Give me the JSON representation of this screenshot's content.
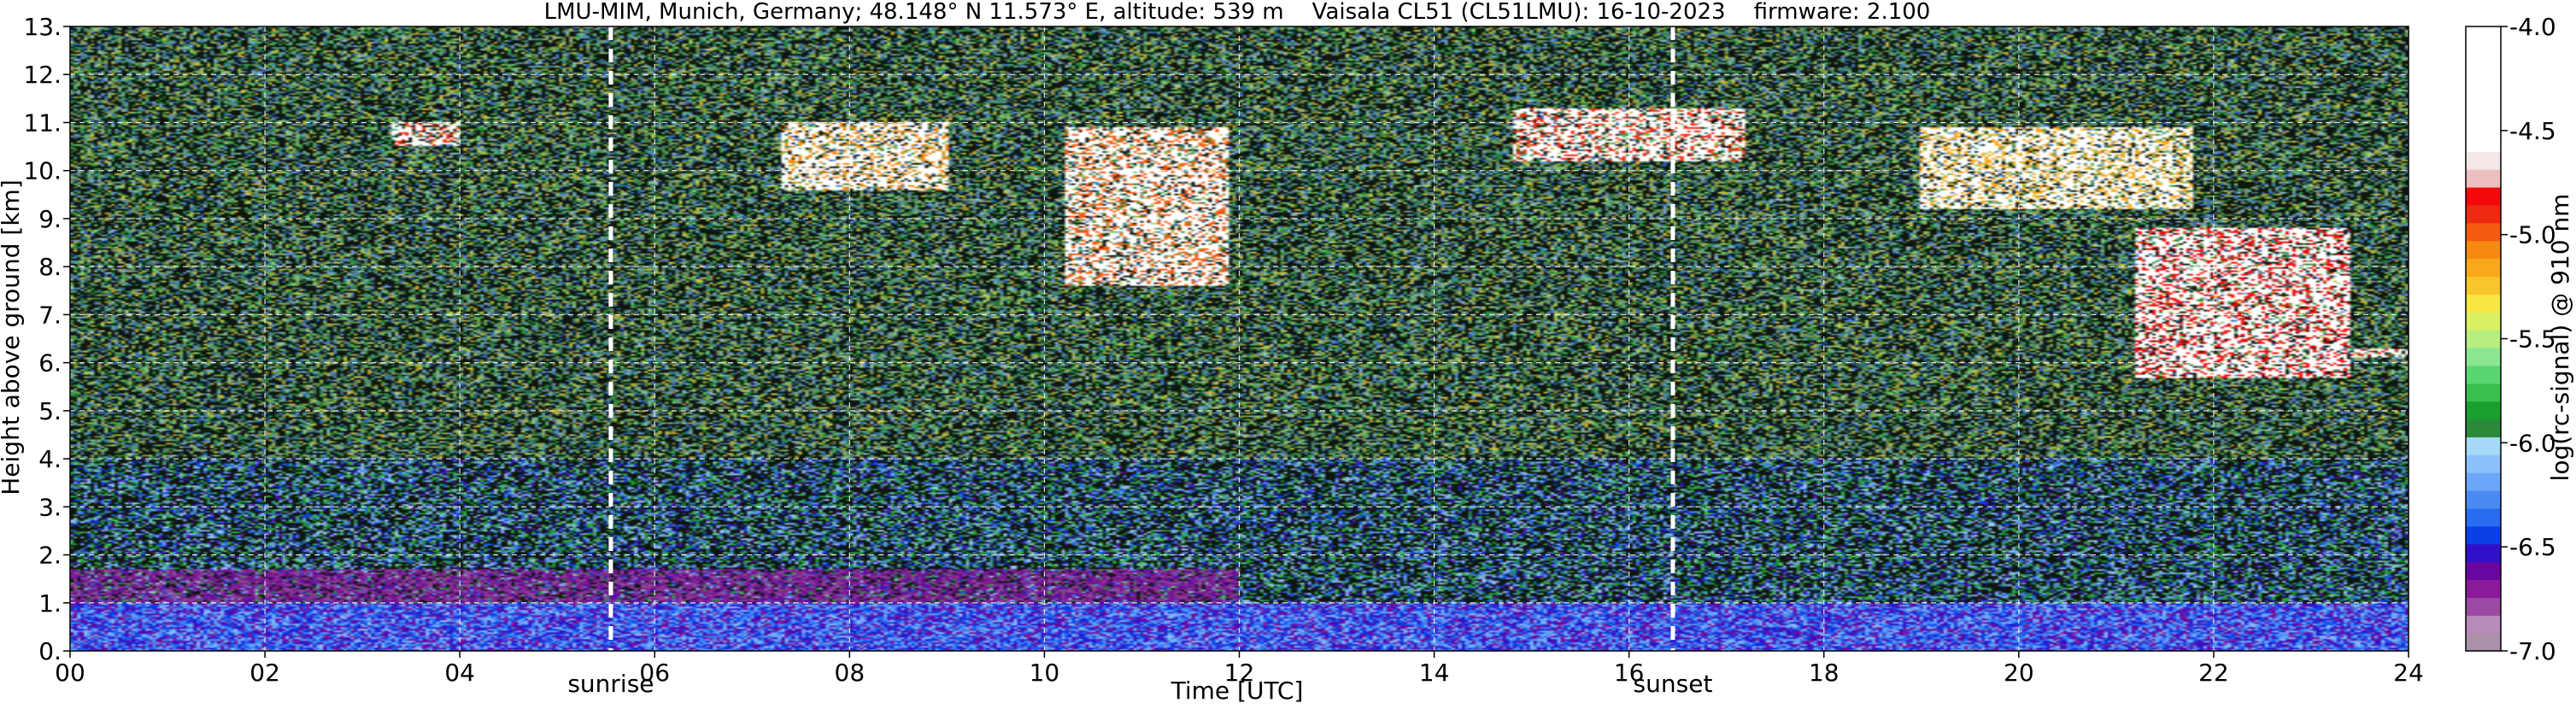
{
  "chart_data": {
    "type": "heatmap",
    "title": "LMU-MIM, Munich, Germany; 48.148° N 11.573° E, altitude: 539 m    Vaisala CL51 (CL51LMU): 16-10-2023    firmware: 2.100",
    "xlabel": "Time [UTC]",
    "ylabel": "Height above ground [km]",
    "xlim": [
      0,
      24
    ],
    "ylim": [
      0,
      13
    ],
    "x_ticks": [
      0,
      2,
      4,
      6,
      8,
      10,
      12,
      14,
      16,
      18,
      20,
      22,
      24
    ],
    "x_tick_labels": [
      "00",
      "02",
      "04",
      "06",
      "08",
      "10",
      "12",
      "14",
      "16",
      "18",
      "20",
      "22",
      "24"
    ],
    "y_ticks": [
      0,
      1,
      2,
      3,
      4,
      5,
      6,
      7,
      8,
      9,
      10,
      11,
      12,
      13
    ],
    "y_tick_labels": [
      "0.",
      "1.",
      "2.",
      "3.",
      "4.",
      "5.",
      "6.",
      "7.",
      "8.",
      "9.",
      "10.",
      "11.",
      "12.",
      "13."
    ],
    "grid": true,
    "markers": [
      {
        "x": 5.55,
        "label": "sunrise"
      },
      {
        "x": 16.45,
        "label": "sunset"
      }
    ],
    "colorbar": {
      "label": "log(rc-signal) @ 910 nm",
      "range": [
        -7.0,
        -4.0
      ],
      "ticks": [
        -7.0,
        -6.5,
        -6.0,
        -5.5,
        -5.0,
        -4.5,
        -4.0
      ],
      "tick_labels": [
        "-7.0",
        "-6.5",
        "-6.0",
        "-5.5",
        "-5.0",
        "-4.5",
        "-4.0"
      ],
      "colors": [
        "#aa90a8",
        "#b88ab8",
        "#9a4aa2",
        "#8a1a9a",
        "#6a06a0",
        "#3010c8",
        "#0a40e8",
        "#2a6cf0",
        "#4a8af2",
        "#6ca6f8",
        "#8cc0fa",
        "#a6d8f8",
        "#2a8a3a",
        "#1aa030",
        "#38c050",
        "#5ad670",
        "#8ae690",
        "#b6ee80",
        "#dcf064",
        "#fae640",
        "#f8c62a",
        "#f8a81a",
        "#f68a10",
        "#f45a10",
        "#ee2a10",
        "#f20a0a",
        "#ecc0c0",
        "#f4e8e8",
        "#ffffff",
        "#ffffff",
        "#ffffff",
        "#ffffff",
        "#ffffff",
        "#ffffff",
        "#ffffff"
      ]
    },
    "features": [
      {
        "type": "boundary_layer",
        "x_range": [
          0,
          24
        ],
        "height_km": [
          0,
          1.0
        ],
        "level": -6.4
      },
      {
        "type": "residual_layer",
        "x_range": [
          0,
          12
        ],
        "height_km": [
          1.0,
          1.7
        ],
        "level": -6.7
      },
      {
        "type": "cirrus",
        "x_range": [
          3.3,
          4.0
        ],
        "height_km": [
          10.5,
          11.0
        ],
        "level": -4.1
      },
      {
        "type": "cirrus",
        "x_range": [
          7.3,
          9.0
        ],
        "height_km": [
          9.6,
          11.0
        ],
        "level": -4.3
      },
      {
        "type": "cirrus",
        "x_range": [
          10.2,
          11.9
        ],
        "height_km": [
          7.6,
          10.9
        ],
        "level": -4.2
      },
      {
        "type": "cirrus",
        "x_range": [
          14.8,
          17.2
        ],
        "height_km": [
          10.2,
          11.3
        ],
        "level": -4.1
      },
      {
        "type": "cirrus",
        "x_range": [
          19.0,
          21.8
        ],
        "height_km": [
          9.2,
          10.9
        ],
        "level": -4.4
      },
      {
        "type": "cloud",
        "x_range": [
          21.2,
          23.4
        ],
        "height_km": [
          5.7,
          8.8
        ],
        "level": -4.0
      },
      {
        "type": "cloud",
        "x_range": [
          23.4,
          24.0
        ],
        "height_km": [
          6.1,
          6.3
        ],
        "level": -4.0
      }
    ]
  }
}
